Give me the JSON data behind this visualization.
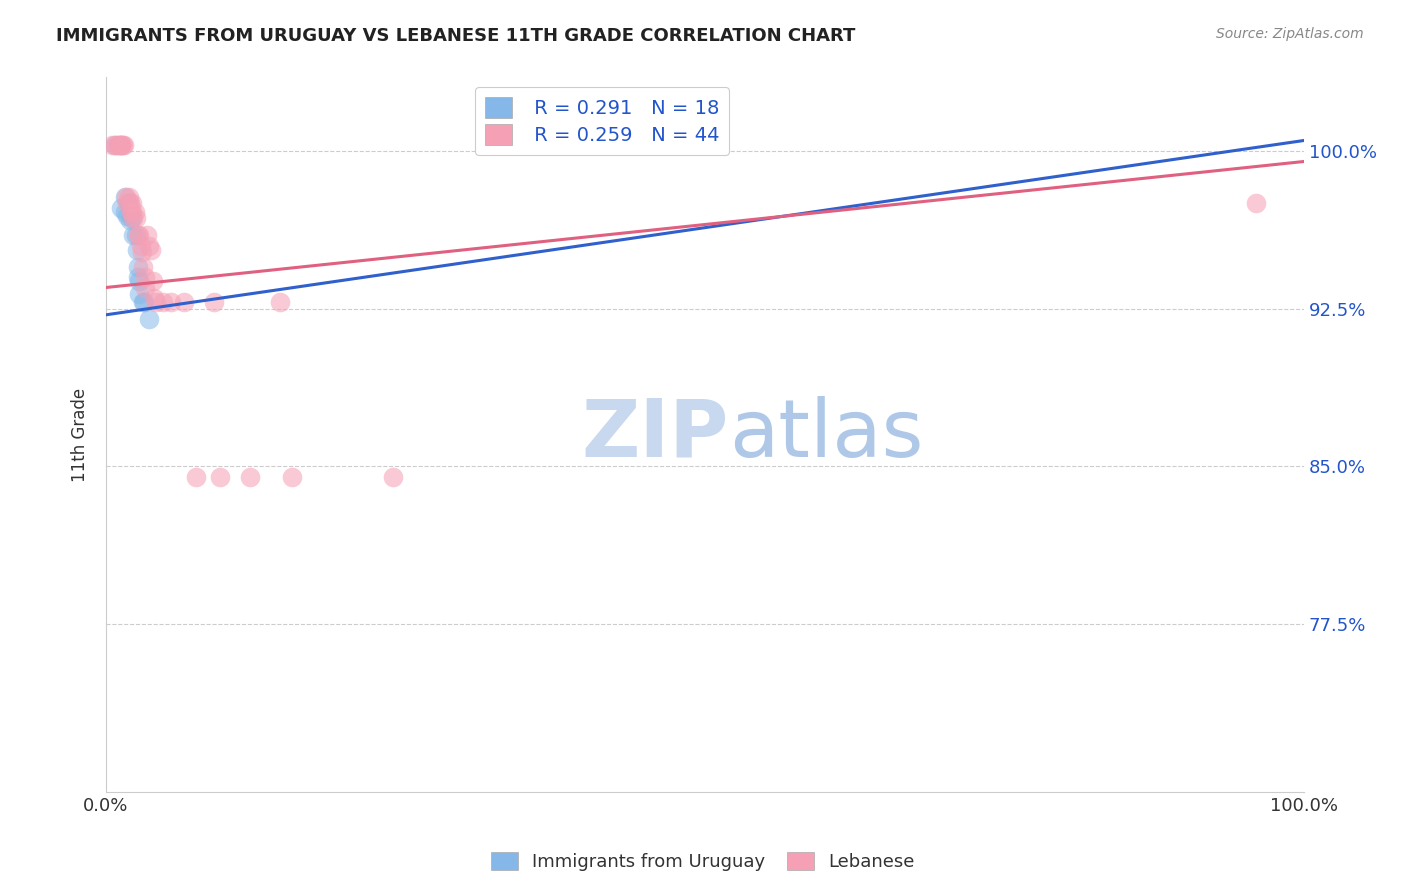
{
  "title": "IMMIGRANTS FROM URUGUAY VS LEBANESE 11TH GRADE CORRELATION CHART",
  "source_text": "Source: ZipAtlas.com",
  "ylabel": "11th Grade",
  "xlim": [
    0.0,
    1.0
  ],
  "ylim": [
    0.695,
    1.035
  ],
  "yticks": [
    0.775,
    0.85,
    0.925,
    1.0
  ],
  "ytick_labels": [
    "77.5%",
    "85.0%",
    "92.5%",
    "100.0%"
  ],
  "xtick_labels": [
    "0.0%",
    "100.0%"
  ],
  "xticks": [
    0.0,
    1.0
  ],
  "blue_color": "#85b8e8",
  "pink_color": "#f5a0b5",
  "blue_line_color": "#3060cc",
  "pink_line_color": "#e06080",
  "legend_text_color": "#2255cc",
  "watermark_zip": "ZIP",
  "watermark_atlas": "atlas",
  "watermark_color_zip": "#c8d8ee",
  "watermark_color_atlas": "#b0c8e8",
  "title_color": "#222222",
  "source_color": "#888888",
  "axis_label_color": "#333333",
  "ytick_color": "#2255cc",
  "grid_color": "#cccccc",
  "background_color": "#ffffff",
  "legend_blue_r": "R = 0.291",
  "legend_blue_n": "N = 18",
  "legend_pink_r": "R = 0.259",
  "legend_pink_n": "N = 44",
  "blue_line_x0": 0.0,
  "blue_line_y0": 0.922,
  "blue_line_x1": 1.0,
  "blue_line_y1": 1.005,
  "pink_line_x0": 0.0,
  "pink_line_y0": 0.935,
  "pink_line_x1": 1.0,
  "pink_line_y1": 0.995,
  "uruguay_points": [
    [
      0.008,
      1.003
    ],
    [
      0.013,
      0.973
    ],
    [
      0.016,
      0.978
    ],
    [
      0.016,
      0.971
    ],
    [
      0.018,
      0.969
    ],
    [
      0.019,
      0.975
    ],
    [
      0.02,
      0.967
    ],
    [
      0.022,
      0.968
    ],
    [
      0.023,
      0.96
    ],
    [
      0.025,
      0.96
    ],
    [
      0.026,
      0.953
    ],
    [
      0.027,
      0.945
    ],
    [
      0.027,
      0.94
    ],
    [
      0.028,
      0.938
    ],
    [
      0.028,
      0.932
    ],
    [
      0.031,
      0.928
    ],
    [
      0.032,
      0.928
    ],
    [
      0.036,
      0.92
    ]
  ],
  "lebanese_points": [
    [
      0.005,
      1.003
    ],
    [
      0.008,
      1.003
    ],
    [
      0.01,
      1.003
    ],
    [
      0.01,
      1.003
    ],
    [
      0.012,
      1.003
    ],
    [
      0.013,
      1.003
    ],
    [
      0.013,
      1.003
    ],
    [
      0.013,
      1.003
    ],
    [
      0.014,
      1.003
    ],
    [
      0.015,
      1.003
    ],
    [
      0.017,
      0.978
    ],
    [
      0.018,
      0.975
    ],
    [
      0.019,
      0.978
    ],
    [
      0.02,
      0.975
    ],
    [
      0.021,
      0.971
    ],
    [
      0.022,
      0.975
    ],
    [
      0.022,
      0.971
    ],
    [
      0.023,
      0.968
    ],
    [
      0.024,
      0.971
    ],
    [
      0.025,
      0.968
    ],
    [
      0.027,
      0.96
    ],
    [
      0.028,
      0.96
    ],
    [
      0.029,
      0.955
    ],
    [
      0.03,
      0.952
    ],
    [
      0.031,
      0.945
    ],
    [
      0.033,
      0.94
    ],
    [
      0.033,
      0.935
    ],
    [
      0.034,
      0.96
    ],
    [
      0.036,
      0.955
    ],
    [
      0.038,
      0.953
    ],
    [
      0.039,
      0.938
    ],
    [
      0.04,
      0.93
    ],
    [
      0.042,
      0.928
    ],
    [
      0.048,
      0.928
    ],
    [
      0.054,
      0.928
    ],
    [
      0.065,
      0.928
    ],
    [
      0.075,
      0.845
    ],
    [
      0.09,
      0.928
    ],
    [
      0.095,
      0.845
    ],
    [
      0.12,
      0.845
    ],
    [
      0.145,
      0.928
    ],
    [
      0.155,
      0.845
    ],
    [
      0.24,
      0.845
    ],
    [
      0.96,
      0.975
    ]
  ]
}
